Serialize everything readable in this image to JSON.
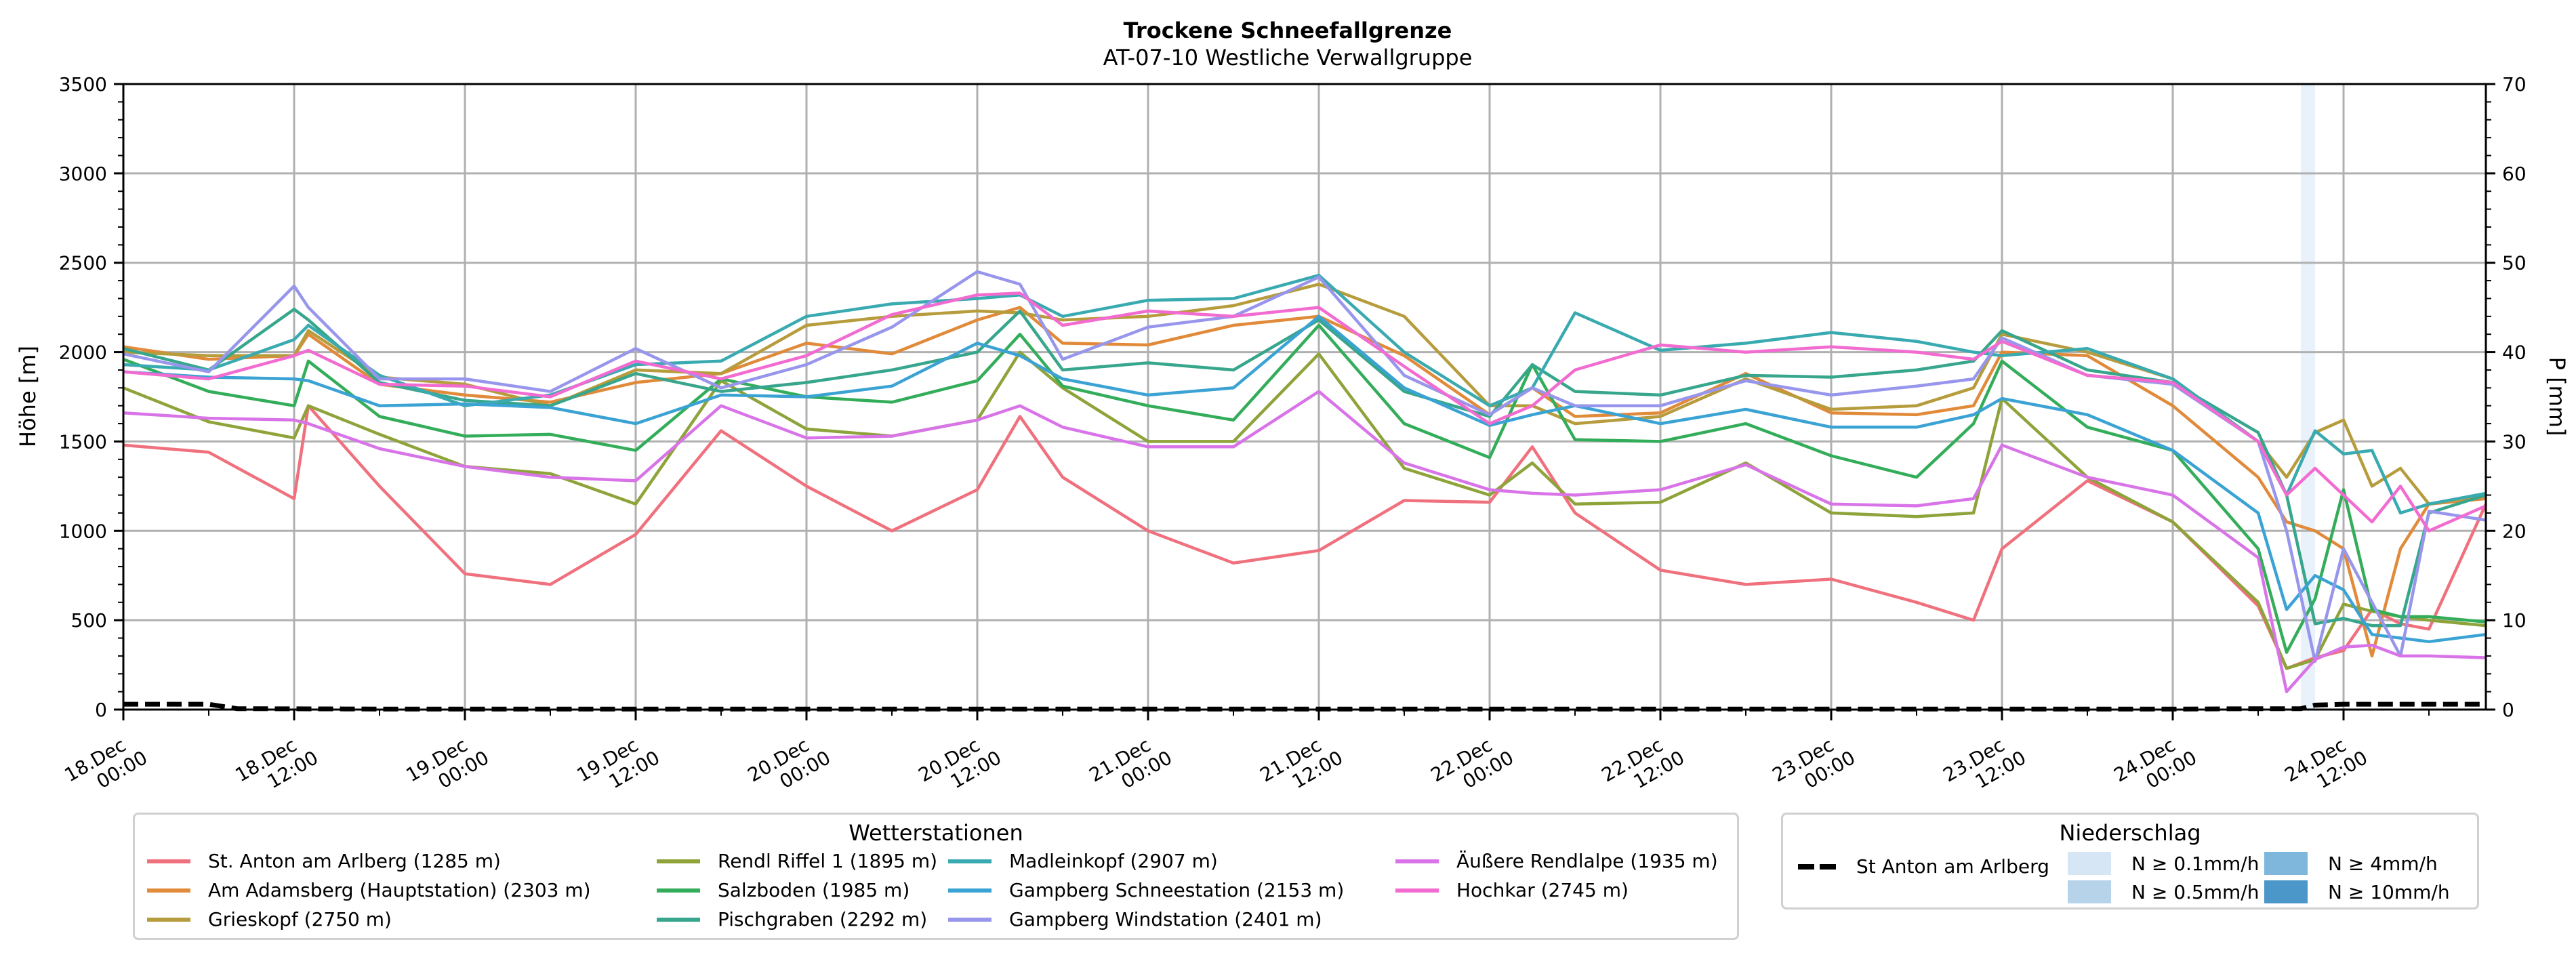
{
  "chart_data": {
    "type": "line",
    "title": "Trockene Schneefallgrenze",
    "subtitle": "AT-07-10 Westliche Verwallgruppe",
    "ylabel": "Höhe [m]",
    "ylabel_right": "P [mm]",
    "ylim": [
      0,
      3500
    ],
    "ylim_right": [
      0,
      70
    ],
    "yticks": [
      0,
      500,
      1000,
      1500,
      2000,
      2500,
      3000,
      3500
    ],
    "yticks_right": [
      0,
      10,
      20,
      30,
      40,
      50,
      60,
      70
    ],
    "x_unit": "hours since 18.Dec 00:00",
    "xlim": [
      0,
      166
    ],
    "xticks": [
      {
        "hours": 0,
        "label": [
          "18.Dec",
          "00:00"
        ]
      },
      {
        "hours": 12,
        "label": [
          "18.Dec",
          "12:00"
        ]
      },
      {
        "hours": 24,
        "label": [
          "19.Dec",
          "00:00"
        ]
      },
      {
        "hours": 36,
        "label": [
          "19.Dec",
          "12:00"
        ]
      },
      {
        "hours": 48,
        "label": [
          "20.Dec",
          "00:00"
        ]
      },
      {
        "hours": 60,
        "label": [
          "20.Dec",
          "12:00"
        ]
      },
      {
        "hours": 72,
        "label": [
          "21.Dec",
          "00:00"
        ]
      },
      {
        "hours": 84,
        "label": [
          "21.Dec",
          "12:00"
        ]
      },
      {
        "hours": 96,
        "label": [
          "22.Dec",
          "00:00"
        ]
      },
      {
        "hours": 108,
        "label": [
          "22.Dec",
          "12:00"
        ]
      },
      {
        "hours": 120,
        "label": [
          "23.Dec",
          "00:00"
        ]
      },
      {
        "hours": 132,
        "label": [
          "23.Dec",
          "12:00"
        ]
      },
      {
        "hours": 144,
        "label": [
          "24.Dec",
          "00:00"
        ]
      },
      {
        "hours": 156,
        "label": [
          "24.Dec",
          "12:00"
        ]
      }
    ],
    "grid": true,
    "x": [
      0,
      6,
      12,
      13,
      18,
      24,
      30,
      36,
      42,
      48,
      54,
      60,
      63,
      66,
      72,
      78,
      84,
      90,
      96,
      99,
      102,
      108,
      114,
      120,
      126,
      130,
      132,
      138,
      144,
      150,
      152,
      154,
      156,
      158,
      160,
      162,
      166
    ],
    "series": [
      {
        "name": "St. Anton am Arlberg (1285 m)",
        "color": "#f0717e",
        "values": [
          1480,
          1440,
          1180,
          1700,
          1250,
          760,
          700,
          980,
          1560,
          1250,
          1000,
          1230,
          1640,
          1300,
          1000,
          820,
          890,
          1170,
          1160,
          1470,
          1100,
          780,
          700,
          730,
          600,
          500,
          900,
          1280,
          1050,
          580,
          230,
          290,
          330,
          560,
          480,
          450,
          1150
        ]
      },
      {
        "name": "Am Adamsberg (Hauptstation) (2303 m)",
        "color": "#e08a3a",
        "values": [
          2030,
          1960,
          1980,
          2100,
          1820,
          1760,
          1720,
          1830,
          1880,
          2050,
          1990,
          2180,
          2250,
          2050,
          2040,
          2150,
          2200,
          1980,
          1650,
          1800,
          1640,
          1660,
          1880,
          1660,
          1650,
          1700,
          2000,
          1980,
          1700,
          1300,
          1050,
          1000,
          900,
          300,
          900,
          1150,
          1180
        ]
      },
      {
        "name": "Grieskopf (2750 m)",
        "color": "#b69c3c",
        "values": [
          2000,
          1980,
          1980,
          2120,
          1860,
          1820,
          1700,
          1900,
          1880,
          2150,
          2200,
          2230,
          2220,
          2180,
          2200,
          2260,
          2380,
          2200,
          1700,
          1700,
          1600,
          1640,
          1850,
          1680,
          1700,
          1800,
          2100,
          2000,
          1850,
          1500,
          1300,
          1550,
          1620,
          1250,
          1350,
          1150,
          1200
        ]
      },
      {
        "name": "Rendl Riffel 1 (1895 m)",
        "color": "#8ea33a",
        "values": [
          1800,
          1610,
          1520,
          1700,
          1540,
          1360,
          1320,
          1150,
          1840,
          1570,
          1530,
          1620,
          2000,
          1800,
          1500,
          1500,
          1990,
          1350,
          1200,
          1380,
          1150,
          1160,
          1380,
          1100,
          1080,
          1100,
          1740,
          1300,
          1050,
          600,
          230,
          280,
          590,
          550,
          520,
          500,
          470
        ]
      },
      {
        "name": "Salzboden (1985 m)",
        "color": "#34ad5a",
        "values": [
          1960,
          1780,
          1700,
          1950,
          1640,
          1530,
          1540,
          1450,
          1850,
          1750,
          1720,
          1840,
          2100,
          1810,
          1700,
          1620,
          2150,
          1600,
          1410,
          1930,
          1510,
          1500,
          1600,
          1420,
          1300,
          1600,
          1950,
          1580,
          1450,
          900,
          320,
          620,
          1230,
          560,
          520,
          520,
          490
        ]
      },
      {
        "name": "Pischgraben (2292 m)",
        "color": "#37a68c",
        "values": [
          2020,
          1900,
          2240,
          2180,
          1830,
          1730,
          1700,
          1880,
          1780,
          1830,
          1900,
          2000,
          2230,
          1900,
          1940,
          1900,
          2180,
          1780,
          1640,
          1930,
          1780,
          1760,
          1870,
          1860,
          1900,
          1950,
          2120,
          1900,
          1830,
          1550,
          1200,
          480,
          510,
          470,
          470,
          1100,
          1200
        ]
      },
      {
        "name": "Madleinkopf (2907 m)",
        "color": "#39aab0",
        "values": [
          1930,
          1900,
          2070,
          2150,
          1870,
          1700,
          1760,
          1930,
          1950,
          2200,
          2270,
          2300,
          2320,
          2200,
          2290,
          2300,
          2430,
          2000,
          1700,
          1800,
          2220,
          2010,
          2050,
          2110,
          2060,
          2000,
          1980,
          2020,
          1850,
          1500,
          1200,
          1560,
          1430,
          1450,
          1100,
          1150,
          1210
        ]
      },
      {
        "name": "Gampberg Schneestation (2153 m)",
        "color": "#3ba3d4",
        "values": [
          1890,
          1860,
          1850,
          1840,
          1700,
          1710,
          1690,
          1600,
          1760,
          1750,
          1810,
          2050,
          1980,
          1850,
          1760,
          1800,
          2200,
          1800,
          1590,
          1650,
          1700,
          1600,
          1680,
          1580,
          1580,
          1650,
          1740,
          1650,
          1450,
          1100,
          560,
          750,
          670,
          420,
          400,
          380,
          420
        ]
      },
      {
        "name": "Gampberg Windstation (2401 m)",
        "color": "#9896ec",
        "values": [
          1990,
          1890,
          2370,
          2250,
          1850,
          1850,
          1780,
          2020,
          1800,
          1930,
          2140,
          2450,
          2380,
          1960,
          2140,
          2200,
          2420,
          1870,
          1650,
          1800,
          1700,
          1700,
          1840,
          1760,
          1810,
          1850,
          2080,
          1870,
          1820,
          1500,
          1000,
          270,
          900,
          600,
          300,
          1110,
          1060
        ]
      },
      {
        "name": "Äußere Rendlalpe (1935 m)",
        "color": "#d874e8",
        "values": [
          1660,
          1630,
          1620,
          1600,
          1460,
          1360,
          1300,
          1280,
          1700,
          1520,
          1530,
          1620,
          1700,
          1580,
          1470,
          1470,
          1780,
          1380,
          1230,
          1210,
          1200,
          1230,
          1370,
          1150,
          1140,
          1180,
          1480,
          1300,
          1200,
          850,
          100,
          280,
          350,
          360,
          300,
          300,
          290
        ]
      },
      {
        "name": "Hochkar (2745 m)",
        "color": "#f26bd0",
        "values": [
          1890,
          1850,
          1980,
          2010,
          1820,
          1810,
          1750,
          1950,
          1850,
          1980,
          2210,
          2320,
          2330,
          2150,
          2230,
          2200,
          2250,
          1920,
          1600,
          1700,
          1900,
          2040,
          2000,
          2030,
          2000,
          1960,
          2060,
          1870,
          1830,
          1500,
          1200,
          1350,
          1200,
          1050,
          1250,
          1000,
          1140
        ]
      }
    ],
    "precipitation": {
      "name": "St Anton am Arlberg",
      "unit": "mm",
      "x": [
        0,
        6,
        8,
        20,
        48,
        96,
        144,
        150,
        153,
        154,
        156,
        166
      ],
      "values": [
        0.6,
        0.6,
        0.1,
        0.05,
        0.05,
        0.05,
        0.05,
        0.1,
        0.1,
        0.5,
        0.6,
        0.6
      ]
    },
    "precip_bands": [
      {
        "from_hours": 153,
        "to_hours": 154,
        "class": "N ≥ 0.1mm/h",
        "color": "#dbe8f6"
      }
    ],
    "legend_stations": {
      "title": "Wetterstationen",
      "placement": "bottom-left"
    },
    "legend_precip": {
      "title": "Niederschlag",
      "placement": "bottom-right",
      "line_label": "St Anton am Arlberg",
      "classes": [
        {
          "label": "N ≥ 0.1mm/h",
          "color": "#d7e6f4"
        },
        {
          "label": "N ≥ 0.5mm/h",
          "color": "#b7d3ea"
        },
        {
          "label": "N ≥ 4mm/h",
          "color": "#7fb6db"
        },
        {
          "label": "N ≥ 10mm/h",
          "color": "#4b97c9"
        }
      ]
    }
  }
}
